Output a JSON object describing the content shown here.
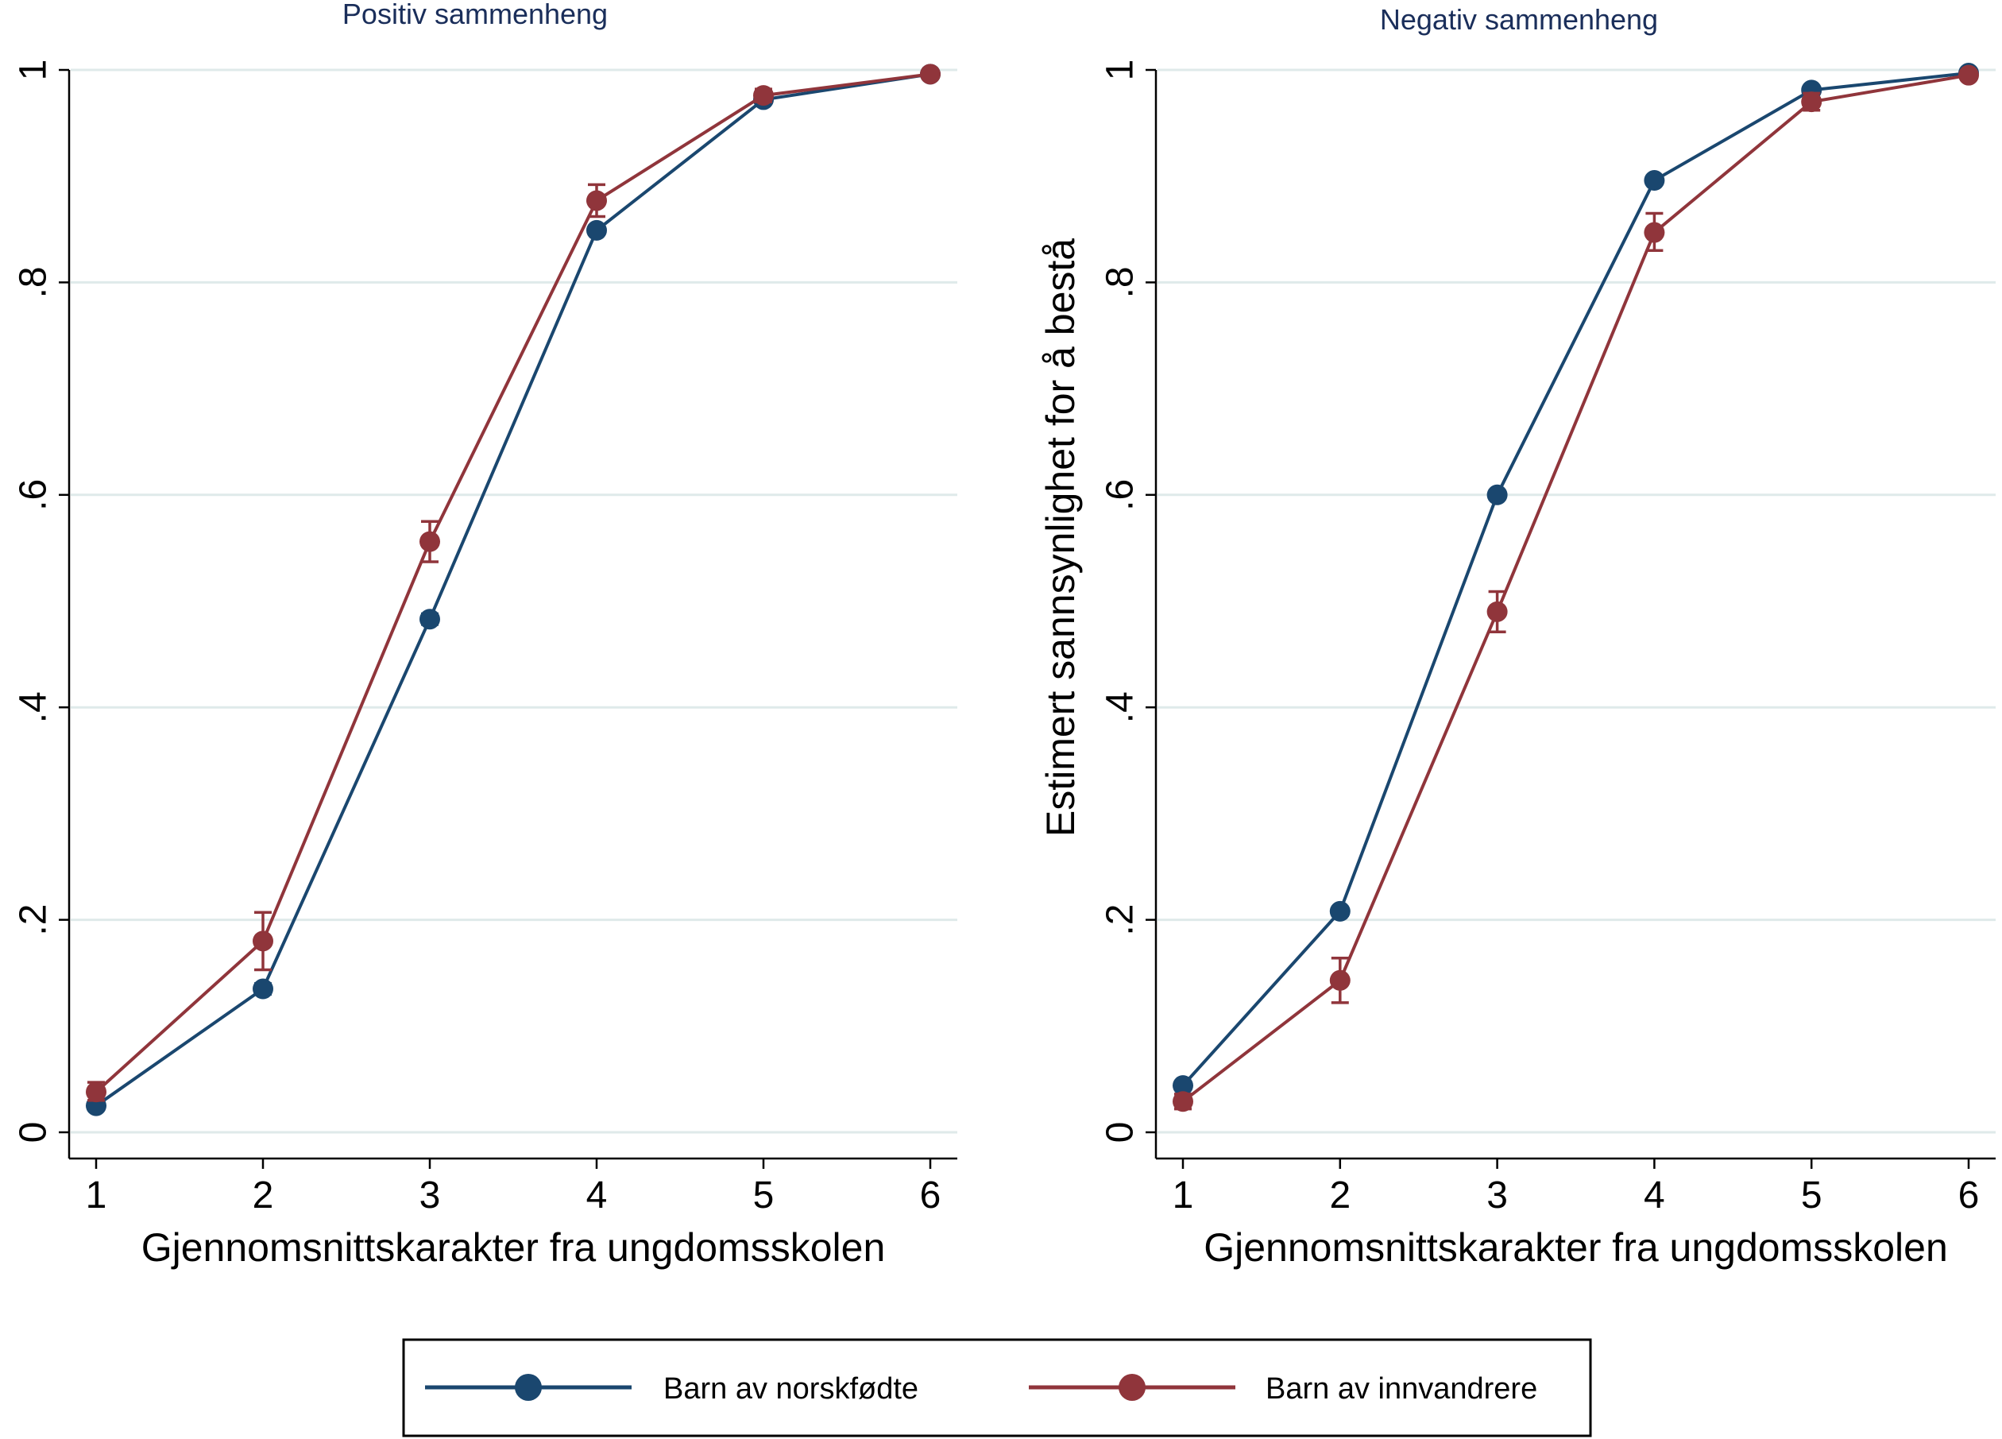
{
  "colors": {
    "norsk": "#1a476f",
    "innv": "#90353b",
    "grid": "#dfeaea"
  },
  "legend": {
    "items": [
      {
        "key": "norsk",
        "label": "Barn av norskfødte"
      },
      {
        "key": "innv",
        "label": "Barn av innvandrere"
      }
    ]
  },
  "chart_data": [
    {
      "type": "line",
      "title": "Positiv sammenheng",
      "xlabel": "Gjennomsnittskarakter fra ungdomsskolen",
      "ylabel": "",
      "x": [
        1,
        2,
        3,
        4,
        5,
        6
      ],
      "xlim": [
        1,
        6
      ],
      "ylim": [
        0,
        1
      ],
      "xticks": [
        1,
        2,
        3,
        4,
        5,
        6
      ],
      "yticks": [
        0,
        0.2,
        0.4,
        0.6,
        0.8,
        1
      ],
      "yticklabels": [
        "0",
        ".2",
        ".4",
        ".6",
        ".8",
        "1"
      ],
      "grid": true,
      "series": [
        {
          "key": "norsk",
          "name": "Barn av norskfødte",
          "values": [
            0.025,
            0.135,
            0.483,
            0.849,
            0.972,
            0.996
          ],
          "ci_low": [
            0.022,
            0.13,
            0.478,
            0.845,
            0.97,
            0.995
          ],
          "ci_high": [
            0.028,
            0.14,
            0.488,
            0.853,
            0.974,
            0.997
          ]
        },
        {
          "key": "innv",
          "name": "Barn av innvandrere",
          "values": [
            0.038,
            0.18,
            0.556,
            0.877,
            0.976,
            0.996
          ],
          "ci_low": [
            0.03,
            0.153,
            0.537,
            0.862,
            0.97,
            0.994
          ],
          "ci_high": [
            0.047,
            0.207,
            0.575,
            0.892,
            0.982,
            0.998
          ]
        }
      ]
    },
    {
      "type": "line",
      "title": "Negativ sammenheng",
      "xlabel": "Gjennomsnittskarakter fra ungdomsskolen",
      "ylabel": "Estimert sannsynlighet for å bestå",
      "x": [
        1,
        2,
        3,
        4,
        5,
        6
      ],
      "xlim": [
        1,
        6
      ],
      "ylim": [
        0,
        1
      ],
      "xticks": [
        1,
        2,
        3,
        4,
        5,
        6
      ],
      "yticks": [
        0,
        0.2,
        0.4,
        0.6,
        0.8,
        1
      ],
      "yticklabels": [
        "0",
        ".2",
        ".4",
        ".6",
        ".8",
        "1"
      ],
      "grid": true,
      "series": [
        {
          "key": "norsk",
          "name": "Barn av norskfødte",
          "values": [
            0.044,
            0.208,
            0.6,
            0.896,
            0.981,
            0.997
          ],
          "ci_low": [
            0.041,
            0.204,
            0.596,
            0.893,
            0.98,
            0.996
          ],
          "ci_high": [
            0.047,
            0.212,
            0.604,
            0.899,
            0.982,
            0.998
          ]
        },
        {
          "key": "innv",
          "name": "Barn av innvandrere",
          "values": [
            0.029,
            0.143,
            0.49,
            0.847,
            0.97,
            0.995
          ],
          "ci_low": [
            0.022,
            0.122,
            0.471,
            0.83,
            0.962,
            0.993
          ],
          "ci_high": [
            0.036,
            0.164,
            0.509,
            0.865,
            0.978,
            0.997
          ]
        }
      ]
    }
  ]
}
